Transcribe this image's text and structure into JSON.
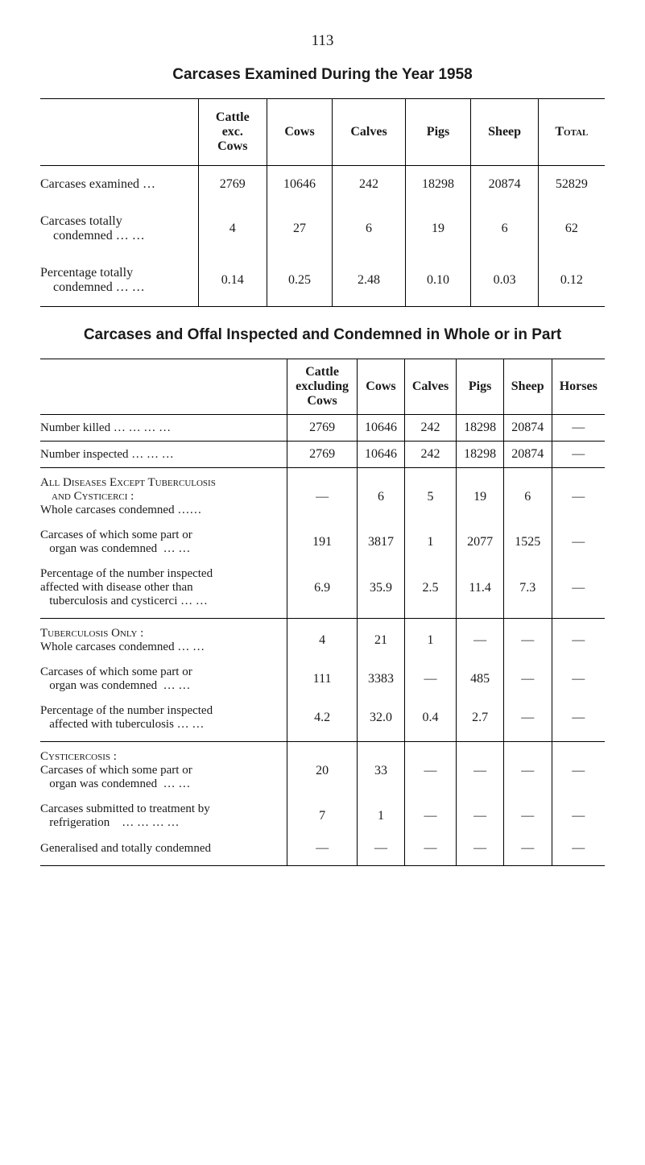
{
  "page_number": "113",
  "title1": "Carcases Examined During the Year 1958",
  "table1": {
    "columns": [
      "Cattle exc. Cows",
      "Cows",
      "Calves",
      "Pigs",
      "Sheep",
      "Total"
    ],
    "total_sc": "Total",
    "rows": [
      {
        "label": "Carcases examined …",
        "values": [
          "2769",
          "10646",
          "242",
          "18298",
          "20874",
          "52829"
        ]
      },
      {
        "label": "Carcases totally condemned … …",
        "values": [
          "4",
          "27",
          "6",
          "19",
          "6",
          "62"
        ]
      },
      {
        "label": "Percentage totally condemned … …",
        "values": [
          "0.14",
          "0.25",
          "2.48",
          "0.10",
          "0.03",
          "0.12"
        ]
      }
    ]
  },
  "title2": "Carcases and Offal Inspected and Condemned in Whole or in Part",
  "table2": {
    "columns": [
      "Cattle excluding Cows",
      "Cows",
      "Calves",
      "Pigs",
      "Sheep",
      "Horses"
    ],
    "number_killed": {
      "label": "Number killed … … … …",
      "values": [
        "2769",
        "10646",
        "242",
        "18298",
        "20874",
        "—"
      ]
    },
    "number_inspected": {
      "label": "Number inspected … … …",
      "values": [
        "2769",
        "10646",
        "242",
        "18298",
        "20874",
        "—"
      ]
    },
    "sectionA": {
      "head1": "All Diseases Except Tuberculosis",
      "head2": "and Cysticerci :",
      "rows": [
        {
          "label": "Whole carcases condemned ……",
          "values": [
            "—",
            "6",
            "5",
            "19",
            "6",
            "—"
          ]
        },
        {
          "label": "Carcases of which some part or organ was condemned … …",
          "values": [
            "191",
            "3817",
            "1",
            "2077",
            "1525",
            "—"
          ]
        },
        {
          "label": "Percentage of the number inspected affected with disease other than tuberculosis and cysticerci … …",
          "values": [
            "6.9",
            "35.9",
            "2.5",
            "11.4",
            "7.3",
            "—"
          ]
        }
      ]
    },
    "sectionB": {
      "head": "Tuberculosis Only :",
      "rows": [
        {
          "label": "Whole carcases condemned … …",
          "values": [
            "4",
            "21",
            "1",
            "—",
            "—",
            "—"
          ]
        },
        {
          "label": "Carcases of which some part or organ was condemned … …",
          "values": [
            "111",
            "3383",
            "—",
            "485",
            "—",
            "—"
          ]
        },
        {
          "label": "Percentage of the number inspected affected with tuberculosis … …",
          "values": [
            "4.2",
            "32.0",
            "0.4",
            "2.7",
            "—",
            "—"
          ]
        }
      ]
    },
    "sectionC": {
      "head": "Cysticercosis :",
      "rows": [
        {
          "label": "Carcases of which some part or organ was condemned … …",
          "values": [
            "20",
            "33",
            "—",
            "—",
            "—",
            "—"
          ]
        },
        {
          "label": "Carcases submitted to treatment by refrigeration … … … …",
          "values": [
            "7",
            "1",
            "—",
            "—",
            "—",
            "—"
          ]
        },
        {
          "label": "Generalised and totally condemned",
          "values": [
            "—",
            "—",
            "—",
            "—",
            "—",
            "—"
          ]
        }
      ]
    }
  }
}
